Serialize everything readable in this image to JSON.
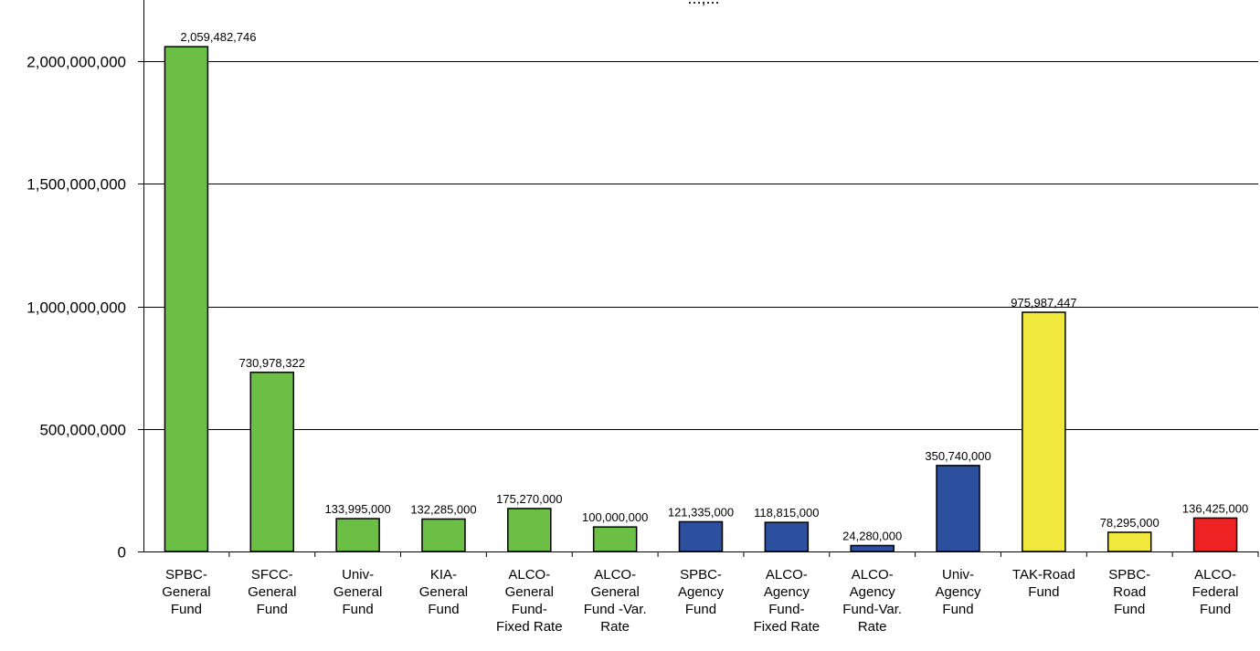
{
  "chart_data": {
    "type": "bar",
    "title_fragment": "...,...",
    "categories": [
      [
        "SPBC-",
        "General",
        "Fund"
      ],
      [
        "SFCC-",
        "General",
        "Fund"
      ],
      [
        "Univ-",
        "General",
        "Fund"
      ],
      [
        "KIA-",
        "General",
        "Fund"
      ],
      [
        "ALCO-",
        "General",
        "Fund-",
        "Fixed Rate"
      ],
      [
        "ALCO-",
        "General",
        "Fund -Var.",
        "Rate"
      ],
      [
        "SPBC-",
        "Agency",
        "Fund"
      ],
      [
        "ALCO-",
        "Agency",
        "Fund-",
        "Fixed Rate"
      ],
      [
        "ALCO-",
        "Agency",
        "Fund-Var.",
        "Rate"
      ],
      [
        "Univ-",
        "Agency",
        "Fund"
      ],
      [
        "TAK-Road",
        "Fund"
      ],
      [
        "SPBC-",
        "Road",
        "Fund"
      ],
      [
        "ALCO-",
        "Federal",
        "Fund"
      ]
    ],
    "values": [
      2059482746,
      730978322,
      133995000,
      132285000,
      175270000,
      100000000,
      121335000,
      118815000,
      24280000,
      350740000,
      975987447,
      78295000,
      136425000
    ],
    "value_labels": [
      "2,059,482,746",
      "730,978,322",
      "133,995,000",
      "132,285,000",
      "175,270,000",
      "100,000,000",
      "121,335,000",
      "118,815,000",
      "24,280,000",
      "350,740,000",
      "975,987,447",
      "78,295,000",
      "136,425,000"
    ],
    "bar_colors": [
      "#6abf44",
      "#6abf44",
      "#6abf44",
      "#6abf44",
      "#6abf44",
      "#6abf44",
      "#2c4f9e",
      "#2c4f9e",
      "#2c4f9e",
      "#2c4f9e",
      "#f0e83c",
      "#f0e83c",
      "#ee2222"
    ],
    "ylim": [
      0,
      2250000000
    ],
    "yticks": [
      0,
      500000000,
      1000000000,
      1500000000,
      2000000000
    ],
    "ytick_labels": [
      "0",
      "500,000,000",
      "1,000,000,000",
      "1,500,000,000",
      "2,000,000,000"
    ],
    "grid": true,
    "legend": "none",
    "xlabel": "",
    "ylabel": ""
  }
}
